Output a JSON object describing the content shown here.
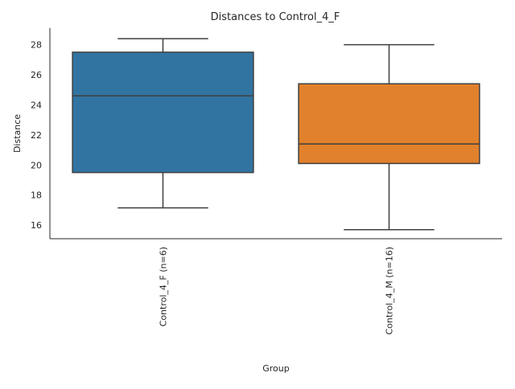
{
  "chart_data": {
    "type": "box",
    "title": "Distances to Control_4_F",
    "xlabel": "Group",
    "ylabel": "Distance",
    "ylim": [
      15.1,
      29.1
    ],
    "yticks": [
      16,
      18,
      20,
      22,
      24,
      26,
      28
    ],
    "grid": false,
    "legend": "none",
    "categories": [
      "Control_4_F (n=6)",
      "Control_4_M (n=16)"
    ],
    "boxes": [
      {
        "category": "Control_4_F (n=6)",
        "whisker_low": 17.15,
        "q1": 19.5,
        "median": 24.6,
        "q3": 27.5,
        "whisker_high": 28.4,
        "color": "#3274a1"
      },
      {
        "category": "Control_4_M (n=16)",
        "whisker_low": 15.7,
        "q1": 20.1,
        "median": 21.4,
        "q3": 25.4,
        "whisker_high": 28.0,
        "color": "#e1812c"
      }
    ],
    "line_color": "#3f3f3f",
    "axis_color": "#262626"
  }
}
